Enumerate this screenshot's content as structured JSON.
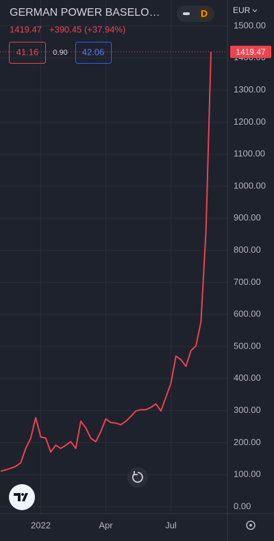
{
  "header": {
    "symbol": "GERMAN POWER BASELO…",
    "interval": "D",
    "currency": "EUR",
    "price": "1419.47",
    "change": "+390.45 (+37.94%)",
    "bid": "41.16",
    "spread": "0.90",
    "ask": "42.06"
  },
  "chart_data": {
    "type": "line",
    "color": "#f0424f",
    "categories": [
      null,
      null,
      null,
      null,
      null,
      null,
      null,
      null,
      "2022",
      null,
      null,
      null,
      null,
      null,
      null,
      null,
      null,
      null,
      null,
      null,
      null,
      "Apr",
      null,
      null,
      null,
      null,
      null,
      null,
      null,
      null,
      null,
      null,
      null,
      null,
      "Jul",
      null,
      null,
      null,
      null,
      null,
      null,
      null,
      null
    ],
    "values": [
      111,
      115,
      120,
      126,
      137,
      182,
      214,
      278,
      218,
      214,
      171,
      192,
      182,
      192,
      203,
      182,
      267,
      246,
      214,
      203,
      235,
      274,
      263,
      261,
      256,
      267,
      282,
      299,
      303,
      303,
      310,
      321,
      299,
      342,
      385,
      470,
      459,
      438,
      487,
      502,
      577,
      860,
      1419.47
    ],
    "ylim": [
      0,
      1500
    ],
    "yticks": [
      {
        "value": 0,
        "label": "0.00"
      },
      {
        "value": 100,
        "label": "100.00"
      },
      {
        "value": 200,
        "label": "200.00"
      },
      {
        "value": 300,
        "label": "300.00"
      },
      {
        "value": 400,
        "label": "400.00"
      },
      {
        "value": 500,
        "label": "500.00"
      },
      {
        "value": 600,
        "label": "600.00"
      },
      {
        "value": 700,
        "label": "700.00"
      },
      {
        "value": 800,
        "label": "800.00"
      },
      {
        "value": 900,
        "label": "900.00"
      },
      {
        "value": 1000,
        "label": "1000.00"
      },
      {
        "value": 1100,
        "label": "1100.00"
      },
      {
        "value": 1200,
        "label": "1200.00"
      },
      {
        "value": 1300,
        "label": "1300.00"
      },
      {
        "value": 1400,
        "label": "1400.00"
      },
      {
        "value": 1500,
        "label": "1500.00"
      }
    ],
    "grid": true
  }
}
